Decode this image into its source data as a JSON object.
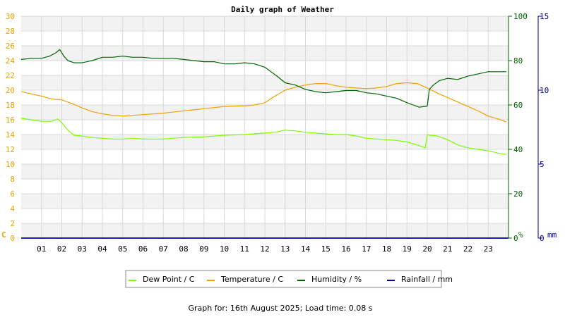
{
  "chart_data": {
    "type": "line",
    "title": "Daily graph of Weather",
    "footer": "Graph for: 16th August 2025; Load time: 0.08 s",
    "x_ticks": [
      "01",
      "02",
      "03",
      "04",
      "05",
      "06",
      "07",
      "08",
      "09",
      "10",
      "11",
      "12",
      "13",
      "14",
      "15",
      "16",
      "17",
      "18",
      "19",
      "20",
      "21",
      "22",
      "23"
    ],
    "xlim": [
      0,
      24
    ],
    "grid": true,
    "legend_position": "bottom-center",
    "axes": {
      "temp": {
        "label": "C",
        "range": [
          0,
          30
        ],
        "ticks": [
          "0",
          "2",
          "4",
          "6",
          "8",
          "10",
          "12",
          "14",
          "16",
          "18",
          "20",
          "22",
          "24",
          "26",
          "28",
          "30"
        ],
        "color": "#f0a000"
      },
      "humidity": {
        "label": "%",
        "range": [
          0,
          100
        ],
        "ticks": [
          "0",
          "20",
          "40",
          "60",
          "80",
          "100"
        ],
        "color": "#006400"
      },
      "rain": {
        "label": "mm",
        "range": [
          0,
          15
        ],
        "ticks": [
          "0",
          "5",
          "10",
          "15"
        ],
        "color": "#000099"
      }
    },
    "series": [
      {
        "name": "Dew Point / C",
        "axis": "temp",
        "color": "#7cfc00",
        "x": [
          0,
          0.5,
          1,
          1.5,
          1.8,
          2.0,
          2.3,
          2.6,
          3,
          3.5,
          4,
          4.5,
          5,
          5.5,
          6,
          7,
          8,
          9,
          10,
          11,
          12,
          12.5,
          13,
          13.5,
          14,
          14.5,
          15,
          15.5,
          16,
          16.5,
          17,
          17.5,
          18,
          18.5,
          19,
          19.5,
          19.9,
          20.0,
          20.1,
          20.5,
          21,
          21.5,
          22,
          22.5,
          23,
          23.5,
          23.9
        ],
        "values": [
          16.2,
          16.0,
          15.8,
          15.8,
          16.1,
          15.6,
          14.6,
          13.9,
          13.8,
          13.6,
          13.5,
          13.4,
          13.4,
          13.5,
          13.4,
          13.4,
          13.6,
          13.7,
          13.9,
          14.0,
          14.2,
          14.3,
          14.6,
          14.5,
          14.3,
          14.2,
          14.1,
          14.0,
          14.0,
          13.8,
          13.5,
          13.4,
          13.3,
          13.2,
          13.0,
          12.6,
          12.2,
          14.0,
          13.9,
          13.8,
          13.3,
          12.6,
          12.2,
          12.0,
          11.8,
          11.5,
          11.3
        ]
      },
      {
        "name": "Temperature / C",
        "axis": "temp",
        "color": "#f0a000",
        "x": [
          0,
          0.5,
          1,
          1.5,
          2,
          2.5,
          3,
          3.5,
          4,
          4.5,
          5,
          5.5,
          6,
          7,
          8,
          9,
          10,
          11,
          11.5,
          12,
          12.5,
          13,
          13.5,
          14,
          14.5,
          15,
          15.5,
          16,
          16.5,
          17,
          17.5,
          18,
          18.5,
          19,
          19.5,
          20,
          20.5,
          21,
          21.5,
          22,
          22.5,
          23,
          23.5,
          23.9
        ],
        "values": [
          19.8,
          19.5,
          19.2,
          18.8,
          18.7,
          18.2,
          17.6,
          17.1,
          16.8,
          16.6,
          16.5,
          16.6,
          16.7,
          16.9,
          17.2,
          17.5,
          17.8,
          17.9,
          18.0,
          18.3,
          19.2,
          20.0,
          20.4,
          20.7,
          20.9,
          20.9,
          20.6,
          20.4,
          20.3,
          20.2,
          20.3,
          20.5,
          20.9,
          21.0,
          20.9,
          20.3,
          19.6,
          19.0,
          18.4,
          17.8,
          17.2,
          16.5,
          16.1,
          15.7
        ]
      },
      {
        "name": "Humidity / %",
        "axis": "humidity",
        "color": "#006400",
        "x": [
          0,
          0.5,
          1,
          1.4,
          1.7,
          1.9,
          2.1,
          2.3,
          2.6,
          3,
          3.5,
          4,
          4.5,
          5,
          5.5,
          6,
          6.5,
          7,
          7.5,
          8,
          8.5,
          9,
          9.5,
          10,
          10.5,
          11,
          11.5,
          12,
          12.3,
          12.6,
          13,
          13.5,
          14,
          14.5,
          15,
          15.5,
          16,
          16.5,
          17,
          17.5,
          18,
          18.5,
          19,
          19.3,
          19.6,
          20,
          20.1,
          20.3,
          20.6,
          21,
          21.5,
          22,
          22.5,
          23,
          23.5,
          23.9
        ],
        "values": [
          80.5,
          81,
          81,
          82,
          83.5,
          85,
          82,
          80,
          79,
          79,
          80,
          81.5,
          81.5,
          82,
          81.5,
          81.5,
          81,
          81,
          81,
          80.5,
          80,
          79.5,
          79.5,
          78.5,
          78.5,
          79,
          78.5,
          77,
          75,
          73,
          70,
          69,
          67,
          66,
          65.5,
          66,
          66.5,
          66.5,
          65.5,
          65,
          64,
          63,
          61,
          60,
          59,
          59.5,
          67,
          69,
          71,
          72,
          71.5,
          73,
          74,
          75,
          75,
          75
        ]
      },
      {
        "name": "Rainfall / mm",
        "axis": "rain",
        "color": "#000099",
        "x": [
          0,
          24
        ],
        "values": [
          0,
          0
        ]
      }
    ]
  }
}
